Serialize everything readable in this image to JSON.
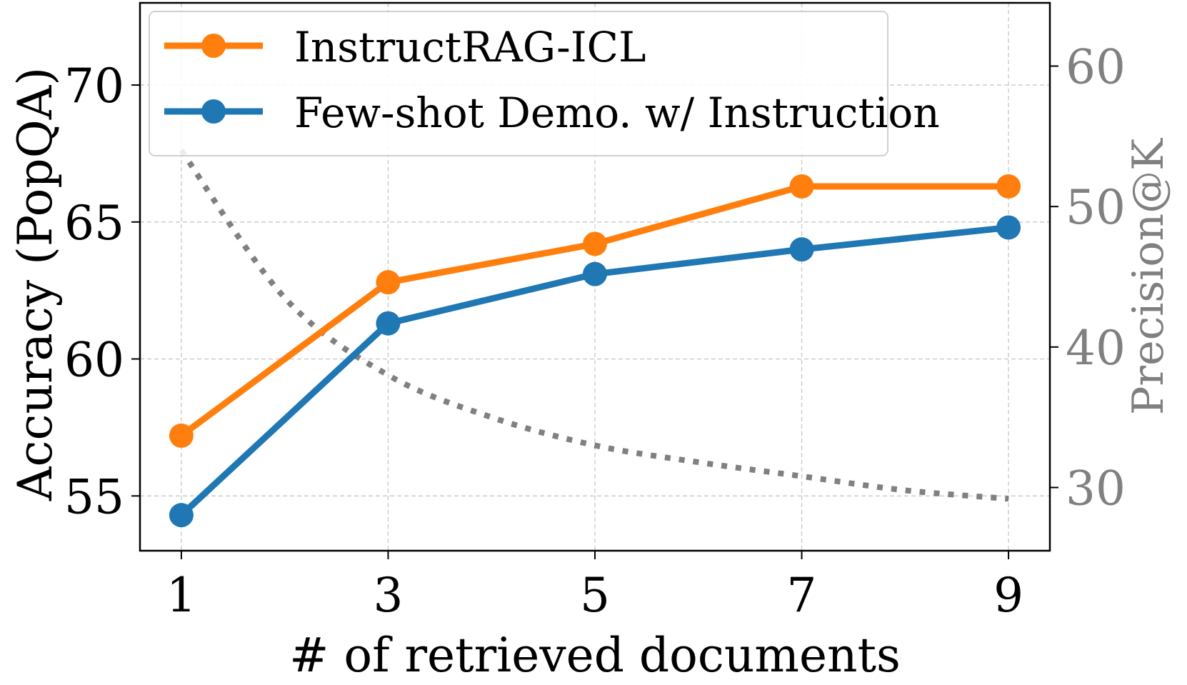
{
  "chart_data": {
    "type": "line",
    "xlabel": "# of retrieved documents",
    "ylabel": "Accuracy (PopQA)",
    "y2label": "Precision@K",
    "x": [
      1,
      3,
      5,
      7,
      9
    ],
    "xticks": [
      "1",
      "3",
      "5",
      "7",
      "9"
    ],
    "xlim": [
      0.6,
      9.4
    ],
    "ylim": [
      53,
      73
    ],
    "yticks": [
      "55",
      "60",
      "65",
      "70"
    ],
    "y2lim": [
      25.5,
      64.5
    ],
    "y2ticks": [
      "30",
      "40",
      "50",
      "60"
    ],
    "grid": true,
    "legend_position": "top-left",
    "series": [
      {
        "name": "InstructRAG-ICL",
        "color": "#ff7f0e",
        "values": [
          57.2,
          62.8,
          64.2,
          66.3,
          66.3
        ]
      },
      {
        "name": "Few-shot Demo. w/ Instruction",
        "color": "#1f77b4",
        "values": [
          54.3,
          61.3,
          63.1,
          64.0,
          64.8
        ]
      }
    ],
    "precision_curve": {
      "axis": "right",
      "style": "dotted",
      "color": "#808080",
      "x": [
        1,
        2,
        3,
        4,
        5,
        6,
        7,
        8,
        9
      ],
      "values": [
        54,
        43.5,
        38,
        35,
        33,
        31.8,
        30.8,
        29.8,
        29.2
      ]
    }
  }
}
